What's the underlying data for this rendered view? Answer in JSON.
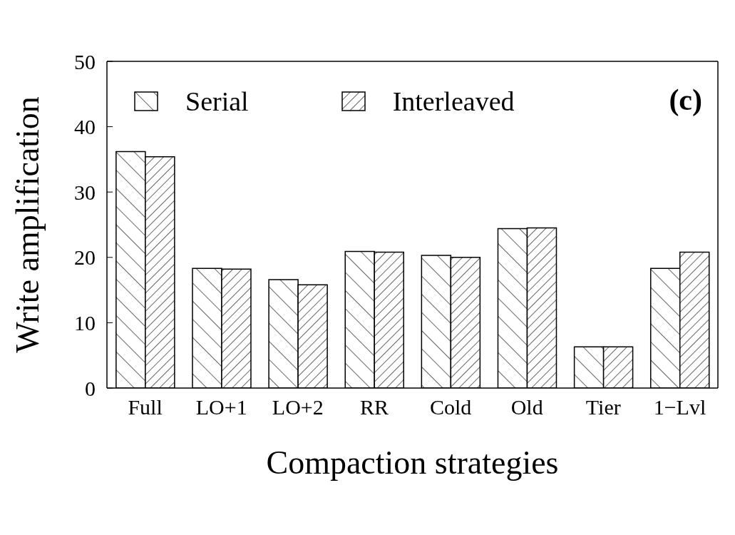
{
  "chart_data": {
    "type": "bar",
    "xlabel": "Compaction strategies",
    "ylabel": "Write amplification",
    "categories": [
      "Full",
      "LO+1",
      "LO+2",
      "RR",
      "Cold",
      "Old",
      "Tier",
      "1−Lvl"
    ],
    "series": [
      {
        "name": "Serial",
        "color": "#000000",
        "values": [
          36.2,
          18.3,
          16.6,
          20.9,
          20.3,
          24.4,
          6.3,
          18.3
        ]
      },
      {
        "name": "Interleaved",
        "color": "#000000",
        "values": [
          35.4,
          18.2,
          15.8,
          20.8,
          20.0,
          24.5,
          6.3,
          20.8
        ]
      }
    ],
    "ylim": [
      0,
      50
    ],
    "yticks": [
      0,
      10,
      20,
      30,
      40,
      50
    ],
    "grid": false,
    "legend": "top left",
    "annotations": [
      "(c)"
    ]
  }
}
